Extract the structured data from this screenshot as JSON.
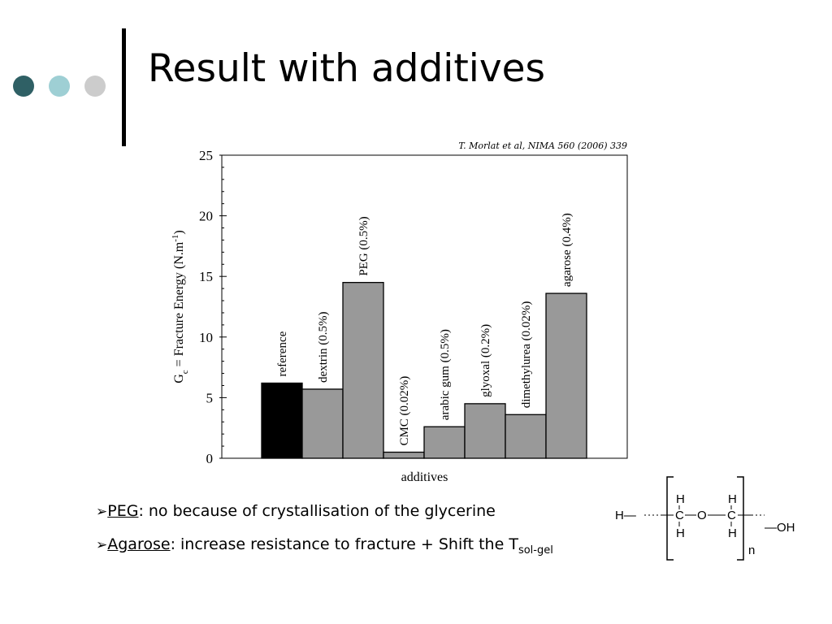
{
  "slide": {
    "title": "Result with additives",
    "citation": "T. Morlat et al, NIMA 560 (2006) 339",
    "decor_colors": [
      "#2f6065",
      "#9ecfd4",
      "#cccccc"
    ]
  },
  "bullets": [
    {
      "icon": "arrow-bullet-icon",
      "term": "PEG",
      "text": ": no because of crystallisation of the glycerine"
    },
    {
      "icon": "arrow-bullet-icon",
      "term": "Agarose",
      "text": ": increase resistance to fracture + Shift the T",
      "subscript": "sol-gel"
    }
  ],
  "formula": {
    "left_end": "H—",
    "repeat_atoms": [
      "H",
      "C",
      "H",
      "O",
      "H",
      "C",
      "H"
    ],
    "right_end": "—OH",
    "repeat_index": "n"
  },
  "chart_data": {
    "type": "bar",
    "xlabel": "additives",
    "ylabel_main": "G",
    "ylabel_sub": "c",
    "ylabel_rest": " = Fracture Energy (N.m",
    "ylabel_sup": "-1",
    "ylabel_end": ")",
    "ylim": [
      0,
      25
    ],
    "yticks": [
      0,
      5,
      10,
      15,
      20,
      25
    ],
    "categories": [
      "reference",
      "dextrin (0.5%)",
      "PEG (0.5%)",
      "CMC (0.02%)",
      "arabic gum (0.5%)",
      "glyoxal (0.2%)",
      "dimethylurea (0.02%)",
      "agarose (0.4%)"
    ],
    "values": [
      6.2,
      5.7,
      14.5,
      0.5,
      2.6,
      4.5,
      3.6,
      13.6
    ],
    "colors": [
      "#000000",
      "#999999",
      "#999999",
      "#999999",
      "#999999",
      "#999999",
      "#999999",
      "#999999"
    ],
    "grid": false
  }
}
